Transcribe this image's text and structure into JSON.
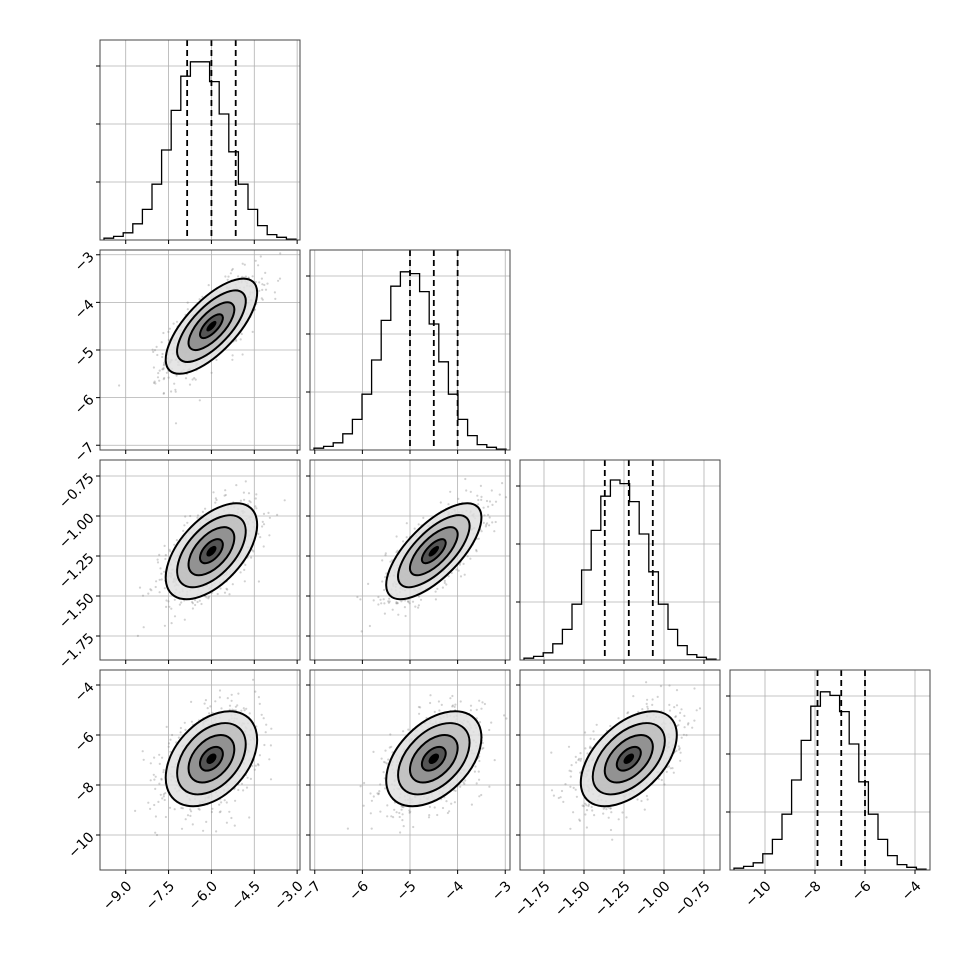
{
  "chart_data": {
    "type": "corner",
    "title": "",
    "grid": true,
    "parameters": [
      {
        "range": [
          -9.9,
          -2.9
        ],
        "ticks": [
          -9.0,
          -7.5,
          -6.0,
          -4.5,
          -3.0
        ],
        "tick_labels": [
          "−9.0",
          "−7.5",
          "−6.0",
          "−4.5",
          "−3.0"
        ],
        "quantiles": [
          -6.85,
          -6.0,
          -5.15
        ],
        "hist_rel": [
          0.01,
          0.02,
          0.04,
          0.09,
          0.17,
          0.31,
          0.5,
          0.72,
          0.91,
          0.99,
          0.99,
          0.88,
          0.7,
          0.49,
          0.31,
          0.17,
          0.08,
          0.03,
          0.015,
          0.005
        ],
        "hist_yticks": 3
      },
      {
        "range": [
          -7.1,
          -2.9
        ],
        "ticks": [
          -7,
          -6,
          -5,
          -4,
          -3
        ],
        "tick_labels": [
          "−7",
          "−6",
          "−5",
          "−4",
          "−3"
        ],
        "quantiles": [
          -5.0,
          -4.5,
          -4.0
        ],
        "hist_rel": [
          0.01,
          0.02,
          0.04,
          0.09,
          0.17,
          0.31,
          0.5,
          0.72,
          0.91,
          0.99,
          0.98,
          0.88,
          0.7,
          0.49,
          0.31,
          0.17,
          0.08,
          0.03,
          0.015,
          0.005
        ],
        "hist_yticks": 3
      },
      {
        "range": [
          -1.9,
          -0.65
        ],
        "ticks": [
          -1.75,
          -1.5,
          -1.25,
          -1.0,
          -0.75
        ],
        "tick_labels": [
          "−1.75",
          "−1.50",
          "−1.25",
          "−1.00",
          "−0.75"
        ],
        "quantiles": [
          -1.37,
          -1.22,
          -1.07
        ],
        "hist_rel": [
          0.01,
          0.02,
          0.04,
          0.09,
          0.17,
          0.31,
          0.5,
          0.72,
          0.91,
          1.0,
          0.98,
          0.88,
          0.7,
          0.49,
          0.31,
          0.17,
          0.08,
          0.03,
          0.015,
          0.005
        ],
        "hist_yticks": 3
      },
      {
        "range": [
          -11.4,
          -3.4
        ],
        "ticks": [
          -10,
          -8,
          -6,
          -4
        ],
        "tick_labels": [
          "−10",
          "−8",
          "−6",
          "−4"
        ],
        "quantiles": [
          -7.9,
          -6.95,
          -6.0
        ],
        "hist_rel": [
          0.01,
          0.02,
          0.04,
          0.09,
          0.17,
          0.31,
          0.5,
          0.72,
          0.91,
          0.99,
          0.97,
          0.88,
          0.7,
          0.49,
          0.31,
          0.17,
          0.08,
          0.03,
          0.015,
          0.005
        ],
        "hist_yticks": 3
      }
    ],
    "pairs": [
      {
        "x": 0,
        "y": 1,
        "mean": [
          -6.0,
          -4.5
        ],
        "sd": [
          0.8,
          0.5
        ],
        "rho": 0.7
      },
      {
        "x": 0,
        "y": 2,
        "mean": [
          -6.0,
          -1.22
        ],
        "sd": [
          0.8,
          0.15
        ],
        "rho": 0.55
      },
      {
        "x": 1,
        "y": 2,
        "mean": [
          -4.5,
          -1.22
        ],
        "sd": [
          0.5,
          0.15
        ],
        "rho": 0.7
      },
      {
        "x": 0,
        "y": 3,
        "mean": [
          -6.0,
          -6.95
        ],
        "sd": [
          0.8,
          0.95
        ],
        "rho": 0.4
      },
      {
        "x": 1,
        "y": 3,
        "mean": [
          -4.5,
          -6.95
        ],
        "sd": [
          0.5,
          0.95
        ],
        "rho": 0.45
      },
      {
        "x": 2,
        "y": 3,
        "mean": [
          -1.22,
          -6.95
        ],
        "sd": [
          0.15,
          0.95
        ],
        "rho": 0.5
      }
    ],
    "contour_levels_sigma": [
      0.5,
      1.0,
      1.5,
      2.0
    ]
  }
}
